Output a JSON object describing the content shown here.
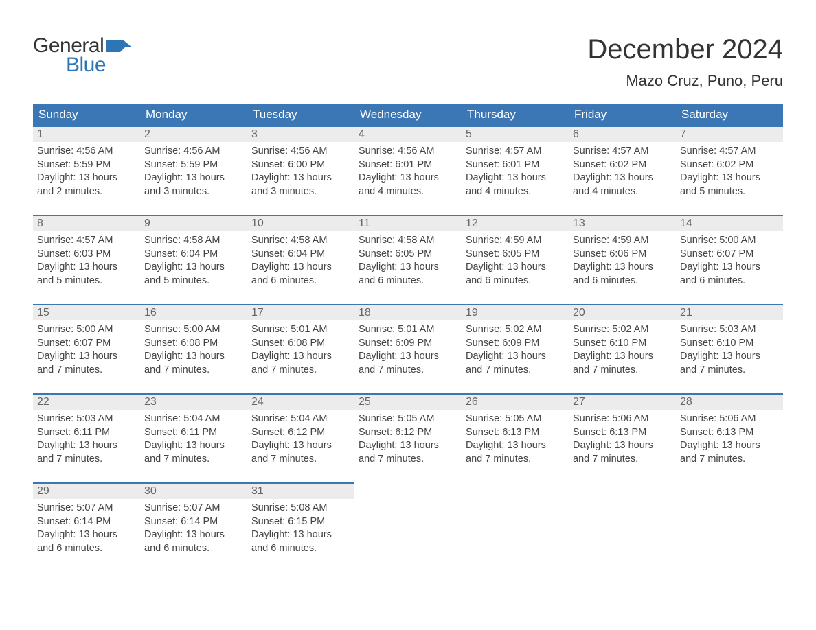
{
  "brand": {
    "word1": "General",
    "word2": "Blue",
    "flag_color": "#2d75b5",
    "text_color": "#333333"
  },
  "header": {
    "month_title": "December 2024",
    "location": "Mazo Cruz, Puno, Peru"
  },
  "theme": {
    "header_bg": "#3a77b4",
    "header_text": "#ffffff",
    "daynum_bg": "#ececec",
    "daynum_border": "#3a77b4",
    "body_text": "#444444",
    "page_bg": "#ffffff",
    "title_fontsize_pt": 30,
    "location_fontsize_pt": 16,
    "dayheader_fontsize_pt": 13,
    "cell_fontsize_pt": 11
  },
  "calendar": {
    "type": "table",
    "columns": [
      "Sunday",
      "Monday",
      "Tuesday",
      "Wednesday",
      "Thursday",
      "Friday",
      "Saturday"
    ],
    "weeks": [
      [
        {
          "n": "1",
          "sunrise": "Sunrise: 4:56 AM",
          "sunset": "Sunset: 5:59 PM",
          "dl1": "Daylight: 13 hours",
          "dl2": "and 2 minutes."
        },
        {
          "n": "2",
          "sunrise": "Sunrise: 4:56 AM",
          "sunset": "Sunset: 5:59 PM",
          "dl1": "Daylight: 13 hours",
          "dl2": "and 3 minutes."
        },
        {
          "n": "3",
          "sunrise": "Sunrise: 4:56 AM",
          "sunset": "Sunset: 6:00 PM",
          "dl1": "Daylight: 13 hours",
          "dl2": "and 3 minutes."
        },
        {
          "n": "4",
          "sunrise": "Sunrise: 4:56 AM",
          "sunset": "Sunset: 6:01 PM",
          "dl1": "Daylight: 13 hours",
          "dl2": "and 4 minutes."
        },
        {
          "n": "5",
          "sunrise": "Sunrise: 4:57 AM",
          "sunset": "Sunset: 6:01 PM",
          "dl1": "Daylight: 13 hours",
          "dl2": "and 4 minutes."
        },
        {
          "n": "6",
          "sunrise": "Sunrise: 4:57 AM",
          "sunset": "Sunset: 6:02 PM",
          "dl1": "Daylight: 13 hours",
          "dl2": "and 4 minutes."
        },
        {
          "n": "7",
          "sunrise": "Sunrise: 4:57 AM",
          "sunset": "Sunset: 6:02 PM",
          "dl1": "Daylight: 13 hours",
          "dl2": "and 5 minutes."
        }
      ],
      [
        {
          "n": "8",
          "sunrise": "Sunrise: 4:57 AM",
          "sunset": "Sunset: 6:03 PM",
          "dl1": "Daylight: 13 hours",
          "dl2": "and 5 minutes."
        },
        {
          "n": "9",
          "sunrise": "Sunrise: 4:58 AM",
          "sunset": "Sunset: 6:04 PM",
          "dl1": "Daylight: 13 hours",
          "dl2": "and 5 minutes."
        },
        {
          "n": "10",
          "sunrise": "Sunrise: 4:58 AM",
          "sunset": "Sunset: 6:04 PM",
          "dl1": "Daylight: 13 hours",
          "dl2": "and 6 minutes."
        },
        {
          "n": "11",
          "sunrise": "Sunrise: 4:58 AM",
          "sunset": "Sunset: 6:05 PM",
          "dl1": "Daylight: 13 hours",
          "dl2": "and 6 minutes."
        },
        {
          "n": "12",
          "sunrise": "Sunrise: 4:59 AM",
          "sunset": "Sunset: 6:05 PM",
          "dl1": "Daylight: 13 hours",
          "dl2": "and 6 minutes."
        },
        {
          "n": "13",
          "sunrise": "Sunrise: 4:59 AM",
          "sunset": "Sunset: 6:06 PM",
          "dl1": "Daylight: 13 hours",
          "dl2": "and 6 minutes."
        },
        {
          "n": "14",
          "sunrise": "Sunrise: 5:00 AM",
          "sunset": "Sunset: 6:07 PM",
          "dl1": "Daylight: 13 hours",
          "dl2": "and 6 minutes."
        }
      ],
      [
        {
          "n": "15",
          "sunrise": "Sunrise: 5:00 AM",
          "sunset": "Sunset: 6:07 PM",
          "dl1": "Daylight: 13 hours",
          "dl2": "and 7 minutes."
        },
        {
          "n": "16",
          "sunrise": "Sunrise: 5:00 AM",
          "sunset": "Sunset: 6:08 PM",
          "dl1": "Daylight: 13 hours",
          "dl2": "and 7 minutes."
        },
        {
          "n": "17",
          "sunrise": "Sunrise: 5:01 AM",
          "sunset": "Sunset: 6:08 PM",
          "dl1": "Daylight: 13 hours",
          "dl2": "and 7 minutes."
        },
        {
          "n": "18",
          "sunrise": "Sunrise: 5:01 AM",
          "sunset": "Sunset: 6:09 PM",
          "dl1": "Daylight: 13 hours",
          "dl2": "and 7 minutes."
        },
        {
          "n": "19",
          "sunrise": "Sunrise: 5:02 AM",
          "sunset": "Sunset: 6:09 PM",
          "dl1": "Daylight: 13 hours",
          "dl2": "and 7 minutes."
        },
        {
          "n": "20",
          "sunrise": "Sunrise: 5:02 AM",
          "sunset": "Sunset: 6:10 PM",
          "dl1": "Daylight: 13 hours",
          "dl2": "and 7 minutes."
        },
        {
          "n": "21",
          "sunrise": "Sunrise: 5:03 AM",
          "sunset": "Sunset: 6:10 PM",
          "dl1": "Daylight: 13 hours",
          "dl2": "and 7 minutes."
        }
      ],
      [
        {
          "n": "22",
          "sunrise": "Sunrise: 5:03 AM",
          "sunset": "Sunset: 6:11 PM",
          "dl1": "Daylight: 13 hours",
          "dl2": "and 7 minutes."
        },
        {
          "n": "23",
          "sunrise": "Sunrise: 5:04 AM",
          "sunset": "Sunset: 6:11 PM",
          "dl1": "Daylight: 13 hours",
          "dl2": "and 7 minutes."
        },
        {
          "n": "24",
          "sunrise": "Sunrise: 5:04 AM",
          "sunset": "Sunset: 6:12 PM",
          "dl1": "Daylight: 13 hours",
          "dl2": "and 7 minutes."
        },
        {
          "n": "25",
          "sunrise": "Sunrise: 5:05 AM",
          "sunset": "Sunset: 6:12 PM",
          "dl1": "Daylight: 13 hours",
          "dl2": "and 7 minutes."
        },
        {
          "n": "26",
          "sunrise": "Sunrise: 5:05 AM",
          "sunset": "Sunset: 6:13 PM",
          "dl1": "Daylight: 13 hours",
          "dl2": "and 7 minutes."
        },
        {
          "n": "27",
          "sunrise": "Sunrise: 5:06 AM",
          "sunset": "Sunset: 6:13 PM",
          "dl1": "Daylight: 13 hours",
          "dl2": "and 7 minutes."
        },
        {
          "n": "28",
          "sunrise": "Sunrise: 5:06 AM",
          "sunset": "Sunset: 6:13 PM",
          "dl1": "Daylight: 13 hours",
          "dl2": "and 7 minutes."
        }
      ],
      [
        {
          "n": "29",
          "sunrise": "Sunrise: 5:07 AM",
          "sunset": "Sunset: 6:14 PM",
          "dl1": "Daylight: 13 hours",
          "dl2": "and 6 minutes."
        },
        {
          "n": "30",
          "sunrise": "Sunrise: 5:07 AM",
          "sunset": "Sunset: 6:14 PM",
          "dl1": "Daylight: 13 hours",
          "dl2": "and 6 minutes."
        },
        {
          "n": "31",
          "sunrise": "Sunrise: 5:08 AM",
          "sunset": "Sunset: 6:15 PM",
          "dl1": "Daylight: 13 hours",
          "dl2": "and 6 minutes."
        },
        null,
        null,
        null,
        null
      ]
    ]
  }
}
